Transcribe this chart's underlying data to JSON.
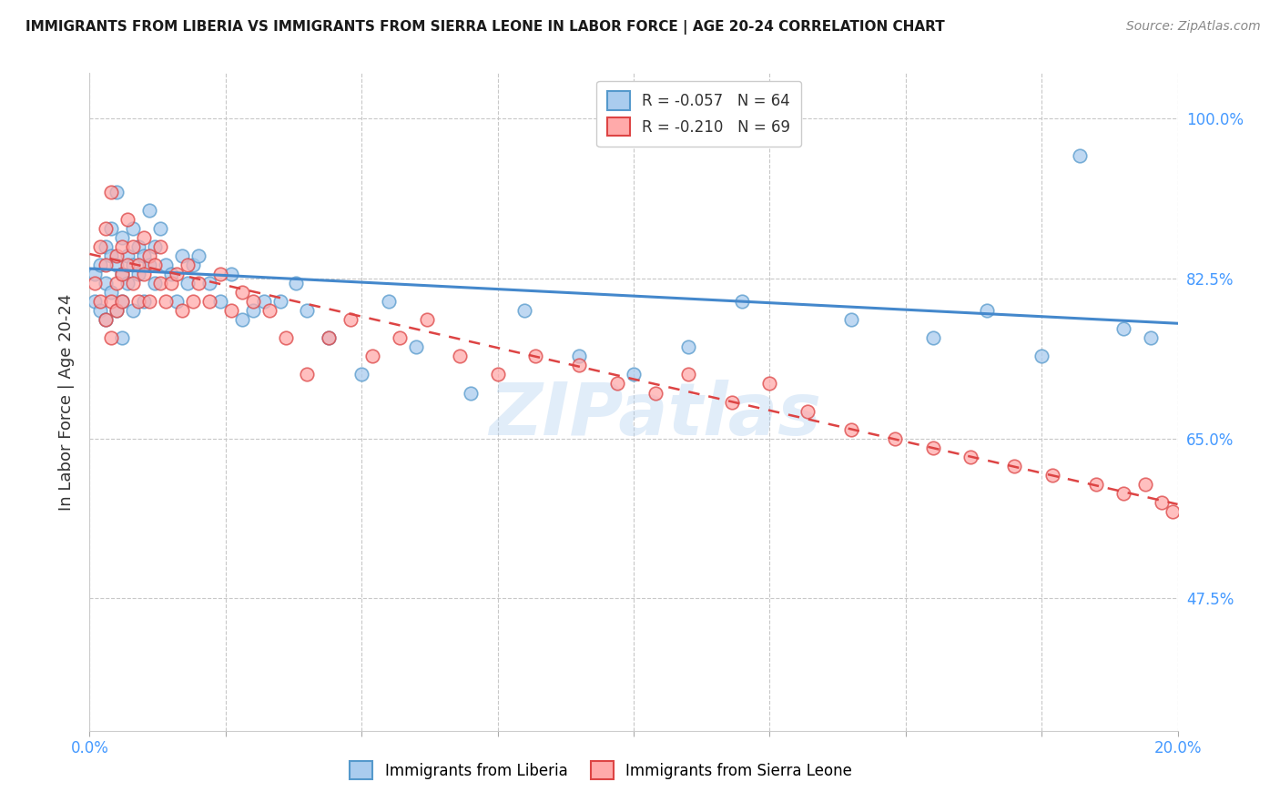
{
  "title": "IMMIGRANTS FROM LIBERIA VS IMMIGRANTS FROM SIERRA LEONE IN LABOR FORCE | AGE 20-24 CORRELATION CHART",
  "source": "Source: ZipAtlas.com",
  "ylabel": "In Labor Force | Age 20-24",
  "xlim": [
    0.0,
    0.2
  ],
  "ylim": [
    0.33,
    1.05
  ],
  "xticks": [
    0.0,
    0.025,
    0.05,
    0.075,
    0.1,
    0.125,
    0.15,
    0.175,
    0.2
  ],
  "xticklabels": [
    "0.0%",
    "",
    "",
    "",
    "",
    "",
    "",
    "",
    "20.0%"
  ],
  "yticks_right": [
    0.475,
    0.65,
    0.825,
    1.0
  ],
  "ytick_labels_right": [
    "47.5%",
    "65.0%",
    "82.5%",
    "100.0%"
  ],
  "grid_color": "#c8c8c8",
  "background_color": "#ffffff",
  "liberia_color": "#aaccee",
  "liberia_edge_color": "#5599cc",
  "sierra_leone_color": "#ffaaaa",
  "sierra_leone_edge_color": "#dd4444",
  "liberia_R": -0.057,
  "liberia_N": 64,
  "sierra_leone_R": -0.21,
  "sierra_leone_N": 69,
  "trend_liberia_color": "#4488cc",
  "trend_sierra_leone_color": "#dd4444",
  "watermark": "ZIPatlas",
  "watermark_color": "#aaccee",
  "liberia_x": [
    0.001,
    0.001,
    0.002,
    0.002,
    0.003,
    0.003,
    0.003,
    0.004,
    0.004,
    0.004,
    0.005,
    0.005,
    0.005,
    0.006,
    0.006,
    0.006,
    0.006,
    0.007,
    0.007,
    0.008,
    0.008,
    0.008,
    0.009,
    0.009,
    0.01,
    0.01,
    0.011,
    0.011,
    0.012,
    0.012,
    0.013,
    0.014,
    0.015,
    0.016,
    0.017,
    0.018,
    0.019,
    0.02,
    0.022,
    0.024,
    0.026,
    0.028,
    0.03,
    0.032,
    0.035,
    0.038,
    0.04,
    0.044,
    0.05,
    0.055,
    0.06,
    0.07,
    0.08,
    0.09,
    0.1,
    0.11,
    0.12,
    0.14,
    0.155,
    0.165,
    0.175,
    0.182,
    0.19,
    0.195
  ],
  "liberia_y": [
    0.83,
    0.8,
    0.84,
    0.79,
    0.86,
    0.82,
    0.78,
    0.85,
    0.81,
    0.88,
    0.84,
    0.79,
    0.92,
    0.83,
    0.87,
    0.8,
    0.76,
    0.85,
    0.82,
    0.84,
    0.79,
    0.88,
    0.83,
    0.86,
    0.85,
    0.8,
    0.84,
    0.9,
    0.82,
    0.86,
    0.88,
    0.84,
    0.83,
    0.8,
    0.85,
    0.82,
    0.84,
    0.85,
    0.82,
    0.8,
    0.83,
    0.78,
    0.79,
    0.8,
    0.8,
    0.82,
    0.79,
    0.76,
    0.72,
    0.8,
    0.75,
    0.7,
    0.79,
    0.74,
    0.72,
    0.75,
    0.8,
    0.78,
    0.76,
    0.79,
    0.74,
    0.96,
    0.77,
    0.76
  ],
  "sierra_leone_x": [
    0.001,
    0.002,
    0.002,
    0.003,
    0.003,
    0.003,
    0.004,
    0.004,
    0.004,
    0.005,
    0.005,
    0.005,
    0.006,
    0.006,
    0.006,
    0.007,
    0.007,
    0.008,
    0.008,
    0.009,
    0.009,
    0.01,
    0.01,
    0.011,
    0.011,
    0.012,
    0.013,
    0.013,
    0.014,
    0.015,
    0.016,
    0.017,
    0.018,
    0.019,
    0.02,
    0.022,
    0.024,
    0.026,
    0.028,
    0.03,
    0.033,
    0.036,
    0.04,
    0.044,
    0.048,
    0.052,
    0.057,
    0.062,
    0.068,
    0.075,
    0.082,
    0.09,
    0.097,
    0.104,
    0.11,
    0.118,
    0.125,
    0.132,
    0.14,
    0.148,
    0.155,
    0.162,
    0.17,
    0.177,
    0.185,
    0.19,
    0.194,
    0.197,
    0.199
  ],
  "sierra_leone_y": [
    0.82,
    0.86,
    0.8,
    0.84,
    0.88,
    0.78,
    0.92,
    0.8,
    0.76,
    0.85,
    0.82,
    0.79,
    0.86,
    0.83,
    0.8,
    0.84,
    0.89,
    0.82,
    0.86,
    0.8,
    0.84,
    0.83,
    0.87,
    0.85,
    0.8,
    0.84,
    0.82,
    0.86,
    0.8,
    0.82,
    0.83,
    0.79,
    0.84,
    0.8,
    0.82,
    0.8,
    0.83,
    0.79,
    0.81,
    0.8,
    0.79,
    0.76,
    0.72,
    0.76,
    0.78,
    0.74,
    0.76,
    0.78,
    0.74,
    0.72,
    0.74,
    0.73,
    0.71,
    0.7,
    0.72,
    0.69,
    0.71,
    0.68,
    0.66,
    0.65,
    0.64,
    0.63,
    0.62,
    0.61,
    0.6,
    0.59,
    0.6,
    0.58,
    0.57
  ],
  "trend_lib_x0": 0.0,
  "trend_lib_x1": 0.2,
  "trend_lib_y0": 0.836,
  "trend_lib_y1": 0.776,
  "trend_sl_x0": 0.0,
  "trend_sl_x1": 0.2,
  "trend_sl_y0": 0.852,
  "trend_sl_y1": 0.578
}
